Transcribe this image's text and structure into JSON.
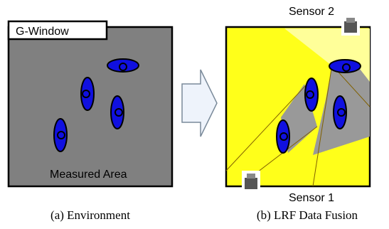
{
  "panels": [
    {
      "window_label": "G-Window",
      "area_label": "Measured Area",
      "caption": "(a) Environment"
    },
    {
      "sensor_top": "Sensor 2",
      "sensor_bottom": "Sensor 1",
      "caption": "(b) LRF Data Fusion"
    }
  ]
}
